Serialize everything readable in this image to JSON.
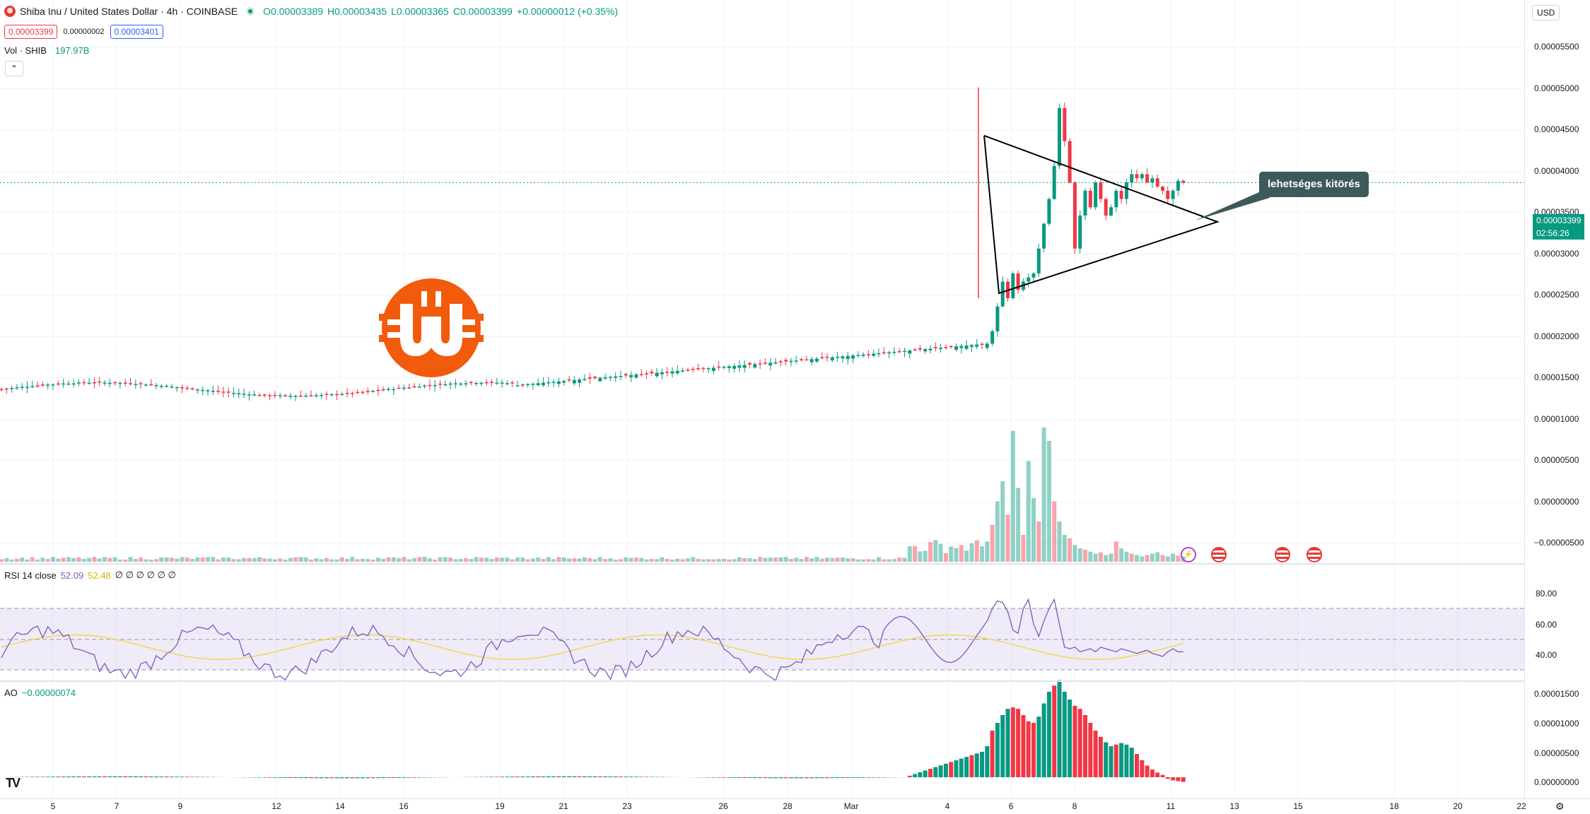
{
  "header": {
    "symbol_title": "Shiba Inu / United States Dollar · 4h · COINBASE",
    "ohlc": {
      "o": "O0.00003389",
      "h": "H0.00003435",
      "l": "L0.00003365",
      "c": "C0.00003399",
      "change": "+0.00000012 (+0.35%)"
    },
    "bid": "0.00003399",
    "spread": "0.00000002",
    "ask": "0.00003401",
    "volume_label": "Vol · SHIB",
    "volume_value": "197.97B",
    "currency": "USD"
  },
  "price_axis": {
    "labels": [
      "0.00005500",
      "0.00005000",
      "0.00004500",
      "0.00004000",
      "0.00003500",
      "0.00003000",
      "0.00002500",
      "0.00002000",
      "0.00001500",
      "0.00001000",
      "0.00000500",
      "0.00000000",
      "−0.00000500"
    ],
    "last_price": "0.00003399",
    "countdown": "02:56:26"
  },
  "rsi_panel": {
    "label": "RSI 14 close",
    "value1": "52.09",
    "value2": "52.48",
    "extra": "∅ ∅ ∅ ∅ ∅ ∅",
    "axis_labels": [
      "80.00",
      "60.00",
      "40.00"
    ]
  },
  "ao_panel": {
    "label": "AO",
    "value": "−0.00000074",
    "axis_labels": [
      "0.00001500",
      "0.00001000",
      "0.00000500",
      "0.00000000"
    ]
  },
  "time_axis": {
    "labels": [
      "5",
      "7",
      "9",
      "12",
      "14",
      "16",
      "19",
      "21",
      "23",
      "26",
      "28",
      "Mar",
      "4",
      "6",
      "8",
      "11",
      "13",
      "15",
      "18",
      "20",
      "22"
    ]
  },
  "annotation": {
    "text": "lehetséges kitörés"
  },
  "colors": {
    "up": "#089981",
    "down": "#f23645",
    "rsi": "#7e57c2",
    "rsi_ma": "#f5d33c",
    "callout": "#3c5a5a",
    "logo": "#f25a0c"
  },
  "icons": {
    "logo": "bitcoin-w-logo-icon",
    "collapse": "chevron-up-icon",
    "settings": "gear-icon",
    "events": [
      "lightning-icon",
      "us-flag-icon",
      "us-flag-icon",
      "us-flag-icon"
    ]
  }
}
